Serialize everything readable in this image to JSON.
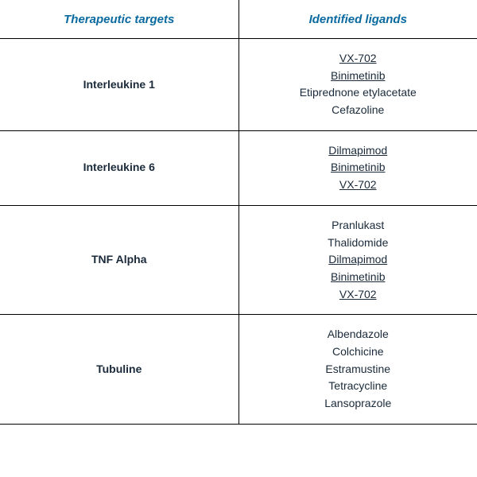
{
  "table": {
    "header_color": "#0a6aa0",
    "text_color": "#1a2a3a",
    "columns": [
      "Therapeutic targets",
      "Identified ligands"
    ],
    "rows": [
      {
        "target": "Interleukine 1",
        "ligands": [
          {
            "name": "VX-702",
            "underlined": true
          },
          {
            "name": "Binimetinib",
            "underlined": true
          },
          {
            "name": "Etiprednone etylacetate",
            "underlined": false
          },
          {
            "name": "Cefazoline",
            "underlined": false
          }
        ]
      },
      {
        "target": "Interleukine 6",
        "ligands": [
          {
            "name": "Dilmapimod",
            "underlined": true
          },
          {
            "name": "Binimetinib",
            "underlined": true
          },
          {
            "name": "VX-702",
            "underlined": true
          }
        ]
      },
      {
        "target": "TNF Alpha",
        "ligands": [
          {
            "name": "Pranlukast",
            "underlined": false
          },
          {
            "name": "Thalidomide",
            "underlined": false
          },
          {
            "name": "Dilmapimod",
            "underlined": true
          },
          {
            "name": "Binimetinib",
            "underlined": true
          },
          {
            "name": "VX-702",
            "underlined": true
          }
        ]
      },
      {
        "target": "Tubuline",
        "ligands": [
          {
            "name": "Albendazole",
            "underlined": false
          },
          {
            "name": "Colchicine",
            "underlined": false
          },
          {
            "name": "Estramustine",
            "underlined": false
          },
          {
            "name": "Tetracycline",
            "underlined": false
          },
          {
            "name": "Lansoprazole",
            "underlined": false
          }
        ]
      }
    ]
  }
}
